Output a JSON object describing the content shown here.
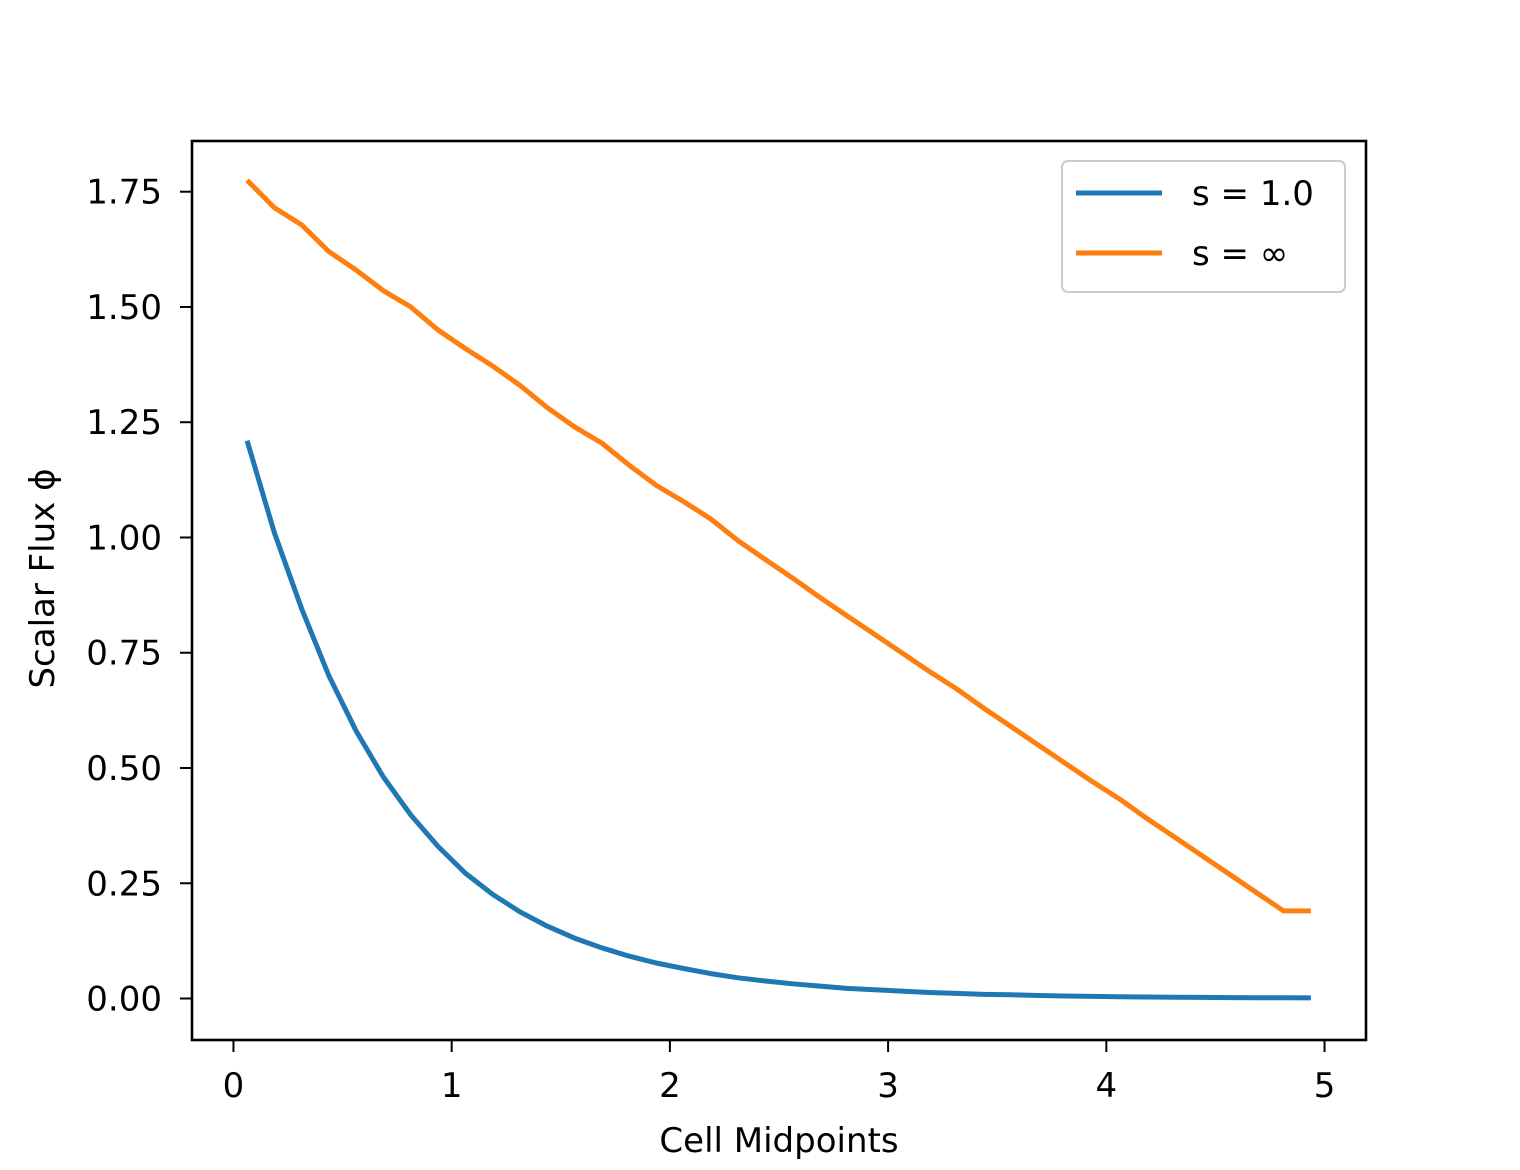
{
  "chart_data": {
    "type": "line",
    "title": "",
    "xlabel": "Cell Midpoints",
    "ylabel": "Scalar Flux ϕ",
    "xlim": [
      -0.19,
      5.19
    ],
    "ylim": [
      -0.09,
      1.86
    ],
    "xticks": [
      0,
      1,
      2,
      3,
      4,
      5
    ],
    "xtick_labels": [
      "0",
      "1",
      "2",
      "3",
      "4",
      "5"
    ],
    "yticks": [
      0.0,
      0.25,
      0.5,
      0.75,
      1.0,
      1.25,
      1.5,
      1.75
    ],
    "ytick_labels": [
      "0.00",
      "0.25",
      "0.50",
      "0.75",
      "1.00",
      "1.25",
      "1.50",
      "1.75"
    ],
    "grid": false,
    "legend_position": "top-right",
    "x": [
      0.0625,
      0.1875,
      0.3125,
      0.4375,
      0.5625,
      0.6875,
      0.8125,
      0.9375,
      1.0625,
      1.1875,
      1.3125,
      1.4375,
      1.5625,
      1.6875,
      1.8125,
      1.9375,
      2.0625,
      2.1875,
      2.3125,
      2.4375,
      2.5625,
      2.6875,
      2.8125,
      2.9375,
      3.0625,
      3.1875,
      3.3125,
      3.4375,
      3.5625,
      3.6875,
      3.8125,
      3.9375,
      4.0625,
      4.1875,
      4.3125,
      4.4375,
      4.5625,
      4.6875,
      4.8125,
      4.9375
    ],
    "series": [
      {
        "name": "s = 1.0",
        "legend_text": "s = 1.0",
        "color": "#1f77b4",
        "values": [
          1.21,
          1.01,
          0.845,
          0.7,
          0.58,
          0.48,
          0.398,
          0.33,
          0.272,
          0.226,
          0.188,
          0.157,
          0.131,
          0.11,
          0.092,
          0.077,
          0.065,
          0.054,
          0.045,
          0.038,
          0.032,
          0.027,
          0.022,
          0.019,
          0.016,
          0.013,
          0.011,
          0.009,
          0.008,
          0.0065,
          0.0055,
          0.0046,
          0.0039,
          0.0033,
          0.0028,
          0.0024,
          0.002,
          0.0017,
          0.0015,
          0.0013
        ]
      },
      {
        "name": "s = ∞",
        "legend_text": "s = ∞",
        "color": "#ff7f0e",
        "values": [
          1.775,
          1.715,
          1.678,
          1.62,
          1.58,
          1.535,
          1.5,
          1.45,
          1.41,
          1.372,
          1.33,
          1.282,
          1.24,
          1.205,
          1.157,
          1.113,
          1.078,
          1.04,
          0.993,
          0.952,
          0.912,
          0.87,
          0.83,
          0.79,
          0.75,
          0.71,
          0.672,
          0.63,
          0.59,
          0.55,
          0.51,
          0.47,
          0.432,
          0.39,
          0.35,
          0.31,
          0.27,
          0.23,
          0.19,
          0.19
        ]
      }
    ]
  }
}
